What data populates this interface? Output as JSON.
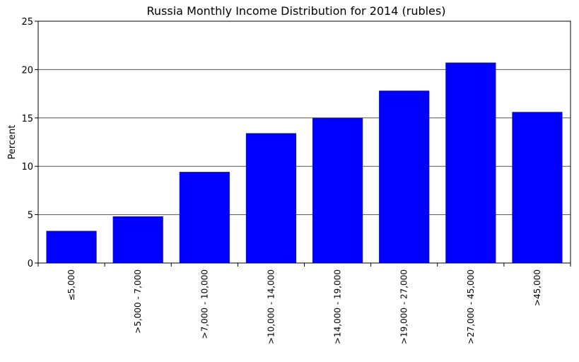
{
  "chart_data": {
    "type": "bar",
    "title": "Russia Monthly Income Distribution for 2014 (rubles)",
    "xlabel": "",
    "ylabel": "Percent",
    "ylim": [
      0,
      25
    ],
    "yticks": [
      "0",
      "5",
      "10",
      "15",
      "20",
      "25"
    ],
    "ytick_values": [
      0,
      5,
      10,
      15,
      20,
      25
    ],
    "grid": "horizontal",
    "bar_color": "#0000ff",
    "categories": [
      "≤5,000",
      ">5,000 - 7,000",
      ">7,000 - 10,000",
      ">10,000 - 14,000",
      ">14,000 - 19,000",
      ">19,000 - 27,000",
      ">27,000 - 45,000",
      ">45,000"
    ],
    "values": [
      3.3,
      4.8,
      9.4,
      13.4,
      15.0,
      17.8,
      20.7,
      15.6
    ]
  }
}
